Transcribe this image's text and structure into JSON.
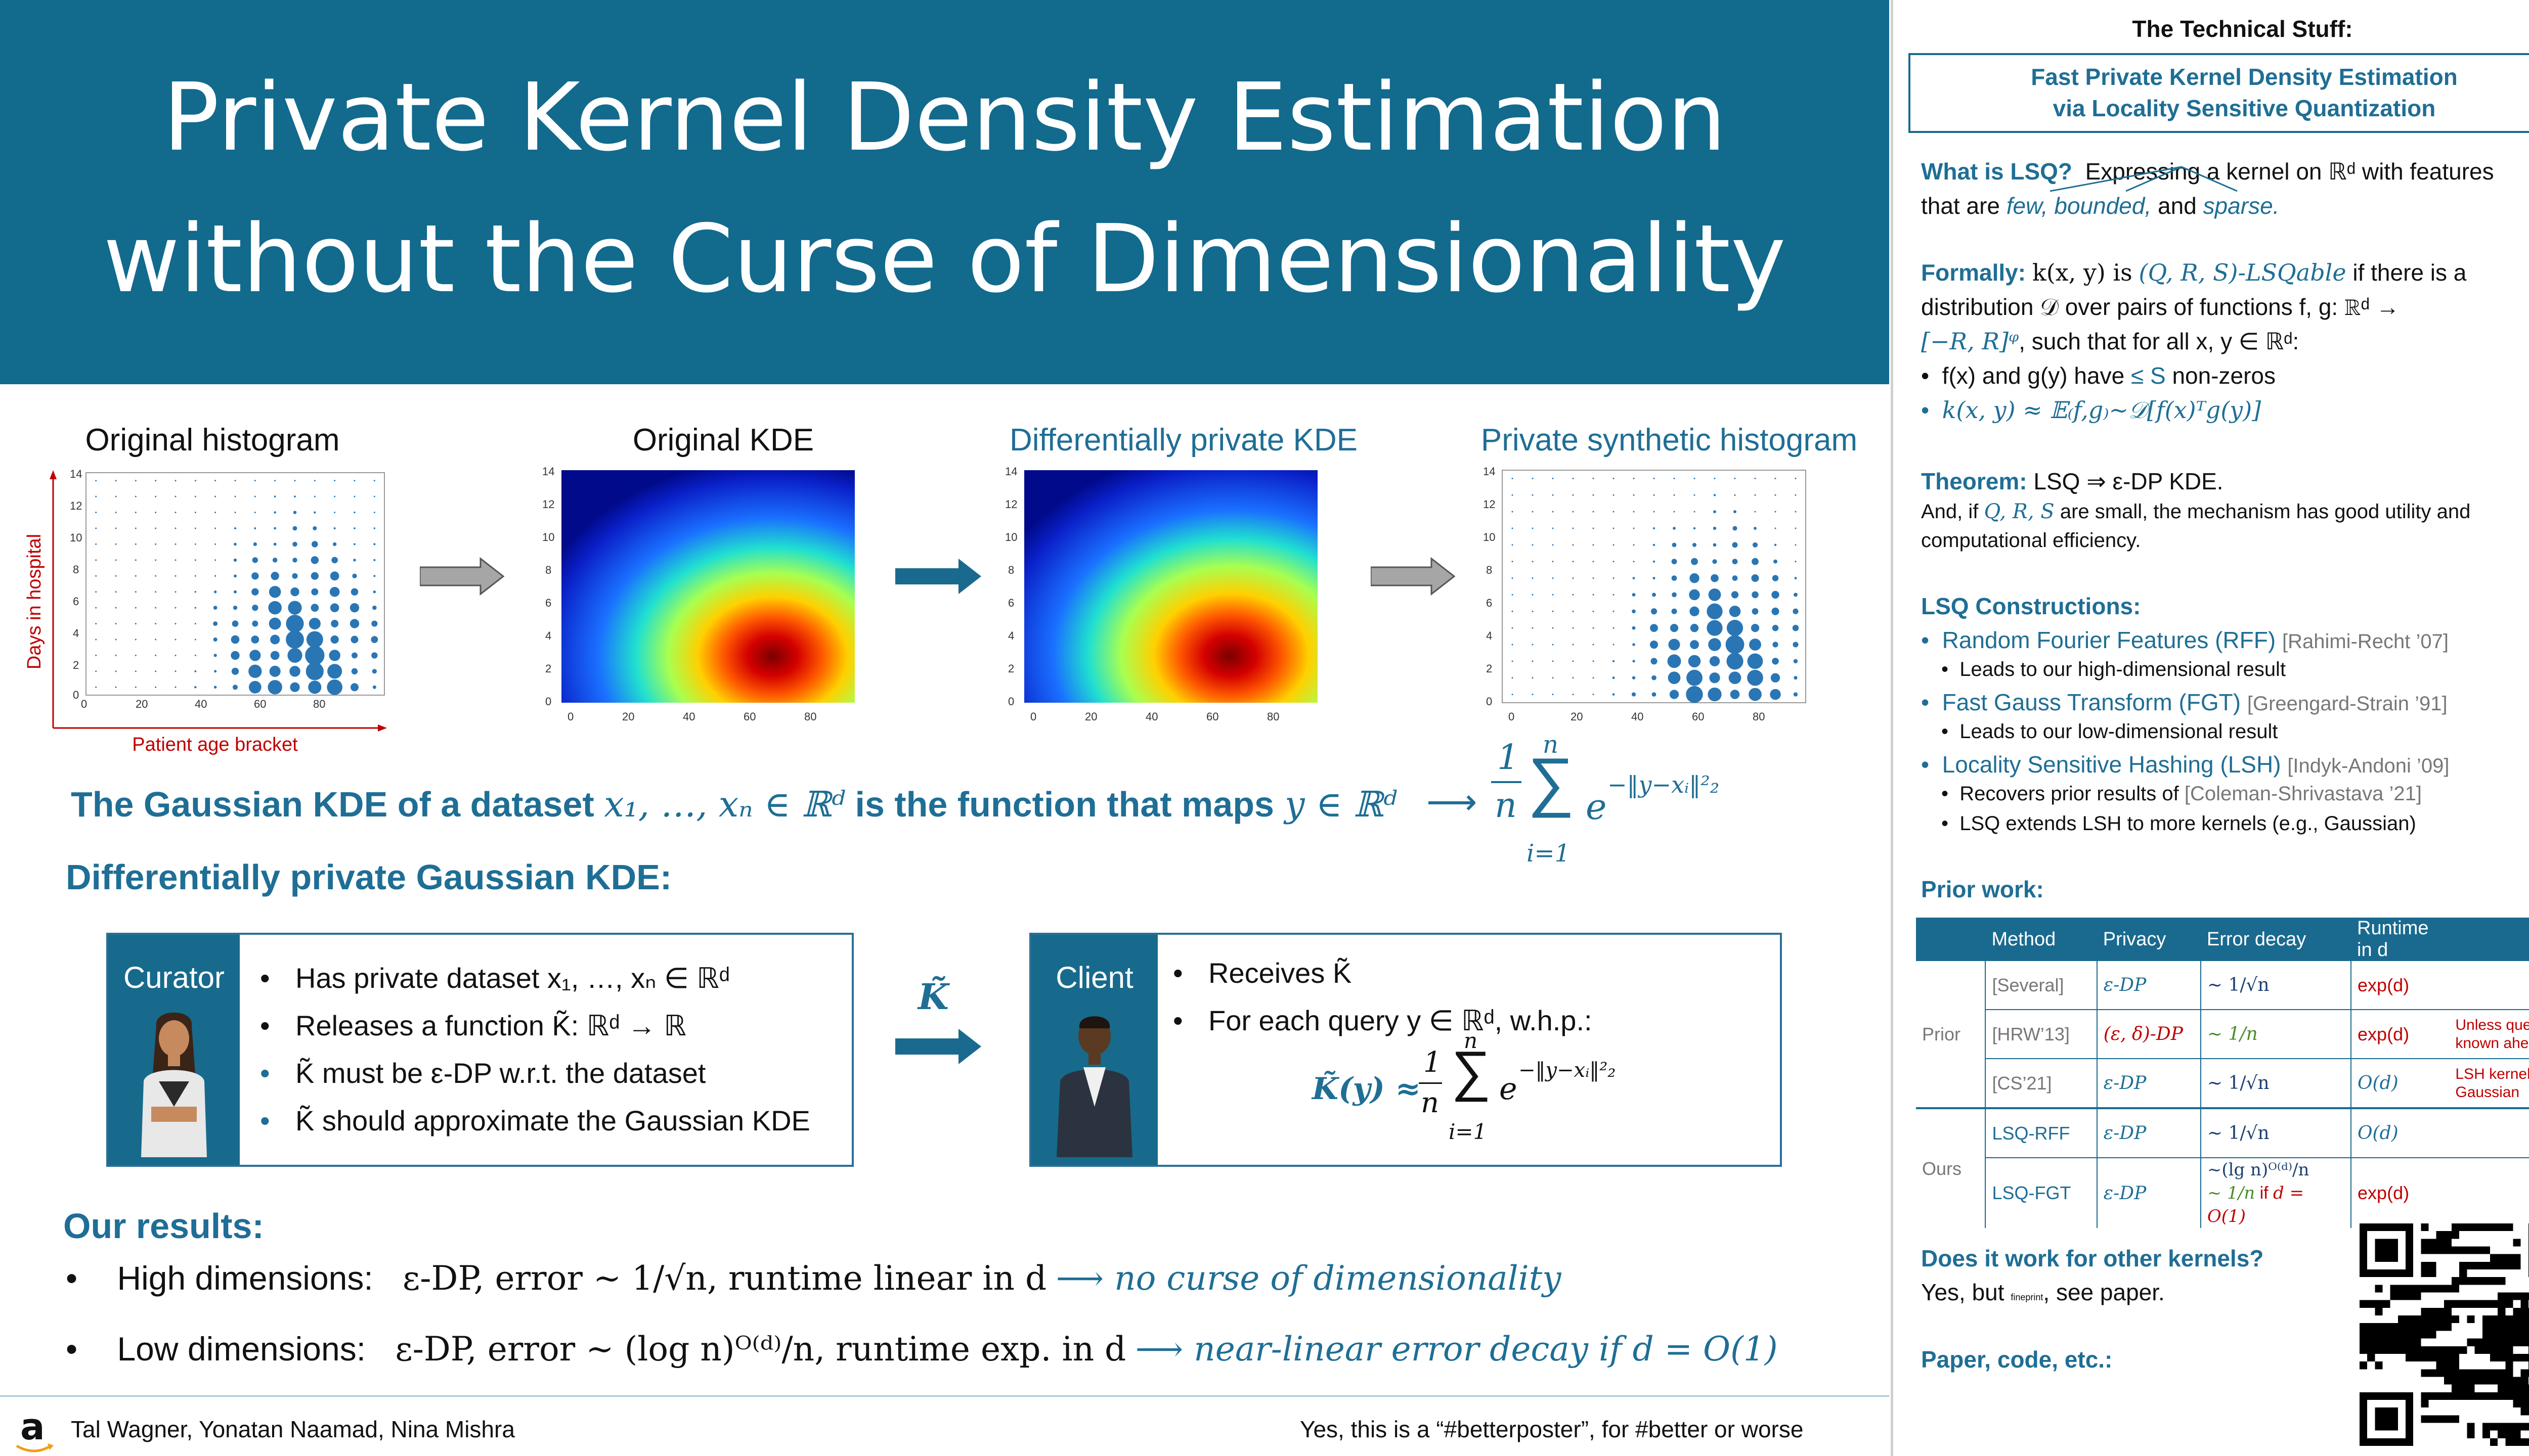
{
  "title": {
    "line1": "Private Kernel Density Estimation",
    "line2": "without the Curse of Dimensionality"
  },
  "figures": {
    "original_histogram": {
      "title": "Original histogram",
      "ylabel": "Days in hospital",
      "xlabel": "Patient age bracket",
      "yticks": [
        "14",
        "12",
        "10",
        "8",
        "6",
        "4",
        "2",
        "0"
      ],
      "xticks": [
        "0",
        "20",
        "40",
        "60",
        "80"
      ]
    },
    "original_kde": {
      "title": "Original KDE",
      "yticks": [
        "14",
        "12",
        "10",
        "8",
        "6",
        "4",
        "2",
        "0"
      ],
      "xticks": [
        "0",
        "20",
        "40",
        "60",
        "80"
      ]
    },
    "dp_kde": {
      "title": "Differentially private KDE",
      "yticks": [
        "14",
        "12",
        "10",
        "8",
        "6",
        "4",
        "2",
        "0"
      ],
      "xticks": [
        "0",
        "20",
        "40",
        "60",
        "80"
      ]
    },
    "synthetic_histogram": {
      "title": "Private synthetic histogram",
      "yticks": [
        "14",
        "12",
        "10",
        "8",
        "6",
        "4",
        "2",
        "0"
      ],
      "xticks": [
        "0",
        "20",
        "40",
        "60",
        "80"
      ]
    }
  },
  "chart_data": [
    {
      "type": "scatter",
      "title": "Original histogram",
      "xlabel": "Patient age bracket",
      "ylabel": "Days in hospital",
      "xlim": [
        0,
        95
      ],
      "ylim": [
        0,
        14
      ]
    },
    {
      "type": "heatmap",
      "title": "Original KDE",
      "xlim": [
        0,
        95
      ],
      "ylim": [
        0,
        14
      ]
    },
    {
      "type": "heatmap",
      "title": "Differentially private KDE",
      "xlim": [
        0,
        95
      ],
      "ylim": [
        0,
        14
      ]
    },
    {
      "type": "scatter",
      "title": "Private synthetic histogram",
      "xlim": [
        0,
        95
      ],
      "ylim": [
        0,
        14
      ]
    }
  ],
  "kde_def": {
    "lead": "The Gaussian KDE of a dataset",
    "points": "x₁, …, xₙ ∈ ℝᵈ",
    "mid": "is the function that maps",
    "y": "y ∈ ℝᵈ",
    "arrow": "⟶",
    "frac_num": "1",
    "frac_den": "n",
    "sum_top": "n",
    "sum_bottom": "i=1",
    "sigma": "∑",
    "exp_base": "e",
    "exponent": "−‖y−xᵢ‖²₂"
  },
  "dp_heading": "Differentially private Gaussian KDE:",
  "curator": {
    "label": "Curator",
    "items": [
      "Has private dataset x₁, …, xₙ ∈ ℝᵈ",
      "Releases a function K̃: ℝᵈ → ℝ",
      "K̃ must be ε-DP w.r.t. the dataset",
      "K̃ should approximate the Gaussian KDE"
    ]
  },
  "transfer_symbol": "K̃",
  "client": {
    "label": "Client",
    "items": [
      "Receives K̃",
      "For each query y ∈ ℝᵈ, w.h.p.:"
    ],
    "formula_lhs": "K̃(y) ≈",
    "frac_num": "1",
    "frac_den": "n",
    "sum_top": "n",
    "sum_bottom": "i=1",
    "sigma": "∑",
    "exp_base": "e",
    "exponent": "−‖y−xᵢ‖²₂"
  },
  "results": {
    "heading": "Our results:",
    "high": {
      "label": "High dimensions:",
      "text": "ε-DP,  error ~ 1/√n,  runtime linear in d",
      "arrow_text": "⟶ no curse of dimensionality"
    },
    "low": {
      "label": "Low dimensions:",
      "text": "ε-DP,  error ~ (log n)ᴼ⁽ᵈ⁾/n,  runtime exp. in d",
      "arrow_text": "⟶ near-linear error decay if d = O(1)"
    }
  },
  "footer": {
    "logo": "a",
    "authors": "Tal Wagner, Yonatan Naamad, Nina Mishra",
    "tagline": "Yes, this is a “#betterposter”, for #better or worse"
  },
  "sidebar": {
    "heading": "The Technical Stuff:",
    "paper_title_1": "Fast Private Kernel Density Estimation",
    "paper_title_2": "via Locality Sensitive Quantization",
    "what_q": "What is LSQ?",
    "what_text": "Expressing a kernel on ℝᵈ with features",
    "what_text2_a": "that are",
    "what_few": "few,",
    "what_bounded": "bounded,",
    "what_and": "and",
    "what_sparse": "sparse.",
    "formally_label": "Formally:",
    "formally_1": "k(x, y) is",
    "formally_qrs": "(Q, R, S)-LSQable",
    "formally_1b": "if there is a",
    "formally_2": "distribution 𝒟 over pairs of functions f, g: ℝᵈ →",
    "formally_3a": "[−R, R]ᵠ",
    "formally_3b": ", such that for all x, y ∈ ℝᵈ:",
    "formally_b1a": "f(x) and g(y) have",
    "formally_b1b": "≤ S",
    "formally_b1c": "non-zeros",
    "formally_b2": "k(x, y) ≈ 𝔼₍f,g₎∼𝒟[f(x)ᵀg(y)]",
    "theorem_label": "Theorem:",
    "theorem_text": "LSQ ⇒ ε-DP KDE.",
    "theorem_2a": "And, if",
    "theorem_2b": "Q, R, S",
    "theorem_2c": "are small, the mechanism has good utility and",
    "theorem_3": "computational efficiency.",
    "constructions_heading": "LSQ Constructions:",
    "constructions": [
      {
        "name": "Random Fourier Features (RFF)",
        "cite": "[Rahimi-Recht ’07]",
        "notes": [
          "Leads to our high-dimensional result"
        ]
      },
      {
        "name": "Fast Gauss Transform (FGT)",
        "cite": "[Greengard-Strain ’91]",
        "notes": [
          "Leads to our low-dimensional result"
        ]
      },
      {
        "name": "Locality Sensitive Hashing (LSH)",
        "cite": "[Indyk-Andoni ’09]",
        "notes": [
          "Recovers prior results of",
          "LSQ extends LSH to more kernels (e.g., Gaussian)"
        ]
      }
    ],
    "lsh_cite2": "[Coleman-Shrivastava ’21]",
    "prior_heading": "Prior work:",
    "table": {
      "headers": [
        "Method",
        "Privacy",
        "Error decay",
        "Runtime in d"
      ],
      "group_prior": "Prior",
      "group_ours": "Ours",
      "rows": [
        {
          "method": "[Several]",
          "privacy": "ε-DP",
          "error": "~ 1/√n",
          "runtime": "exp(d)",
          "note": ""
        },
        {
          "method": "[HRW’13]",
          "privacy": "(ε, δ)-DP",
          "error": "~ 1/n",
          "runtime": "exp(d)",
          "note": "Unless query known ahead"
        },
        {
          "method": "[CS’21]",
          "privacy": "ε-DP",
          "error": "~ 1/√n",
          "runtime": "O(d)",
          "note": "LSH kernels, not Gaussian"
        },
        {
          "method": "LSQ-RFF",
          "privacy": "ε-DP",
          "error": "~ 1/√n",
          "runtime": "O(d)",
          "note": ""
        },
        {
          "method": "LSQ-FGT",
          "privacy": "ε-DP",
          "error": "~(lg n)ᴼ⁽ᵈ⁾/n",
          "error2a": "~ 1/n",
          "error2b": "if",
          "error2c": "d = O(1)",
          "runtime": "exp(d)",
          "note": ""
        }
      ]
    },
    "other_q": "Does it work for other kernels?",
    "other_a1": "Yes, but",
    "other_fine": "fineprint",
    "other_a2": ", see paper.",
    "paper_code": "Paper, code, etc.:"
  },
  "colors": {
    "banner": "#126a8d",
    "accent": "#1f6e95",
    "red": "#c00000",
    "green": "#4a8a2a"
  }
}
